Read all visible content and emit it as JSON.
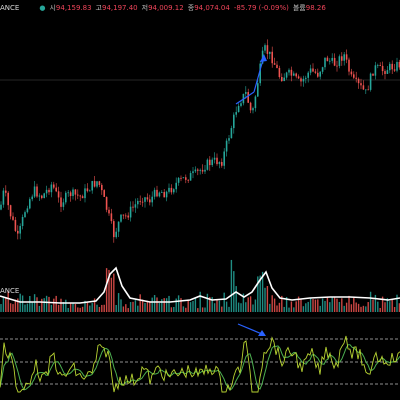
{
  "header": {
    "exchange_fragment": "ANCE",
    "icon": "circle-dot-icon",
    "ohlc": [
      {
        "key": "시",
        "value": "94,159.83"
      },
      {
        "key": "고",
        "value": "94,197.40"
      },
      {
        "key": "저",
        "value": "94,009.12"
      },
      {
        "key": "종",
        "value": "94,074.04"
      },
      {
        "key": "",
        "value": "-85.79 (-0.09%)"
      },
      {
        "key": "볼륨",
        "value": "98.26"
      }
    ]
  },
  "volume_panel": {
    "label_fragment": "ANCE"
  },
  "colors": {
    "up": "#26a69a",
    "down": "#ef5350",
    "volume_ma": "#ffffff",
    "osc_main": "#b8d432",
    "osc_signal": "#4caf50",
    "bands": "#bdbdbd",
    "annotation": "#2962ff"
  },
  "chart_data": [
    {
      "type": "candlestick",
      "description_of_trend_points": [
        [
          0,
          0.6
        ],
        [
          4,
          0.48
        ],
        [
          10,
          0.62
        ],
        [
          18,
          0.78
        ],
        [
          26,
          0.58
        ],
        [
          34,
          0.48
        ],
        [
          42,
          0.52
        ],
        [
          52,
          0.44
        ],
        [
          60,
          0.56
        ],
        [
          70,
          0.5
        ],
        [
          80,
          0.52
        ],
        [
          90,
          0.46
        ],
        [
          98,
          0.42
        ],
        [
          106,
          0.58
        ],
        [
          114,
          0.76
        ],
        [
          120,
          0.66
        ],
        [
          126,
          0.64
        ],
        [
          134,
          0.58
        ],
        [
          142,
          0.52
        ],
        [
          150,
          0.54
        ],
        [
          158,
          0.48
        ],
        [
          166,
          0.5
        ],
        [
          176,
          0.44
        ],
        [
          186,
          0.4
        ],
        [
          196,
          0.38
        ],
        [
          206,
          0.32
        ],
        [
          214,
          0.3
        ],
        [
          222,
          0.3
        ],
        [
          230,
          0.12
        ],
        [
          238,
          -0.06
        ],
        [
          246,
          -0.12
        ],
        [
          252,
          0.02
        ],
        [
          258,
          -0.2
        ],
        [
          264,
          -0.4
        ],
        [
          272,
          -0.34
        ],
        [
          280,
          -0.22
        ],
        [
          290,
          -0.24
        ],
        [
          300,
          -0.18
        ],
        [
          310,
          -0.26
        ],
        [
          318,
          -0.24
        ],
        [
          326,
          -0.34
        ],
        [
          334,
          -0.3
        ],
        [
          344,
          -0.36
        ],
        [
          352,
          -0.2
        ],
        [
          360,
          -0.16
        ],
        [
          366,
          -0.12
        ],
        [
          374,
          -0.28
        ],
        [
          382,
          -0.26
        ],
        [
          390,
          -0.28
        ],
        [
          400,
          -0.3
        ]
      ]
    },
    {
      "type": "bar",
      "name": "volume"
    },
    {
      "type": "line",
      "name": "oscillator"
    }
  ]
}
